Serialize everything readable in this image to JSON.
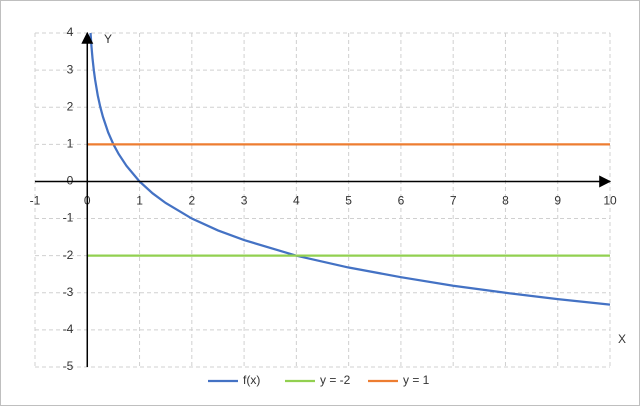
{
  "chart_data": {
    "type": "line",
    "xlabel": "X",
    "ylabel": "Y",
    "xlim": [
      -1,
      10
    ],
    "xticks": [
      -1,
      0,
      1,
      2,
      3,
      4,
      5,
      6,
      7,
      8,
      9,
      10
    ],
    "ylim": [
      -5,
      4
    ],
    "yticks": [
      -5,
      -4,
      -3,
      -2,
      -1,
      0,
      1,
      2,
      3,
      4
    ],
    "grid": true,
    "legend": "bottom",
    "series": [
      {
        "name": "f(x)",
        "color": "#4472c4",
        "x": [
          0.0625,
          0.08,
          0.1,
          0.125,
          0.15,
          0.2,
          0.25,
          0.3,
          0.4,
          0.5,
          0.6,
          0.75,
          1,
          1.25,
          1.5,
          2,
          2.5,
          3,
          4,
          5,
          6,
          7,
          8,
          9,
          10
        ],
        "values": [
          4,
          3.64,
          3.32,
          3,
          2.74,
          2.32,
          2,
          1.74,
          1.32,
          1,
          0.74,
          0.42,
          0,
          -0.32,
          -0.58,
          -1,
          -1.32,
          -1.58,
          -2,
          -2.32,
          -2.58,
          -2.81,
          -3,
          -3.17,
          -3.32
        ]
      },
      {
        "name": "y = -2",
        "color": "#92d050",
        "x": [
          0,
          10
        ],
        "values": [
          -2,
          -2
        ]
      },
      {
        "name": "y = 1",
        "color": "#ed7d31",
        "x": [
          0,
          10
        ],
        "values": [
          1,
          1
        ]
      }
    ]
  }
}
